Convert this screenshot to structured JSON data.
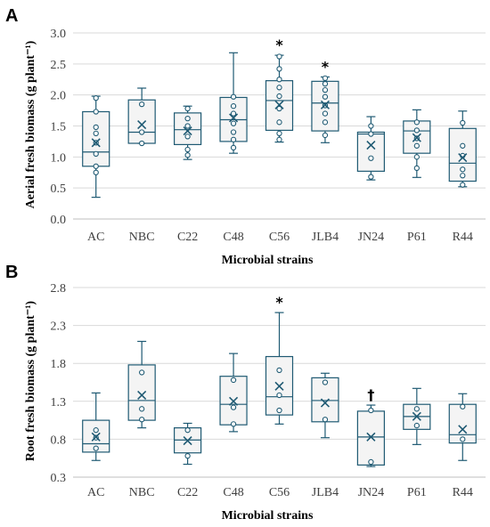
{
  "colors": {
    "box_stroke": "#1f5a73",
    "box_fill": "#f4f4f4",
    "grid": "#d9d9d9",
    "axis": "#bfbfbf"
  },
  "chart_data": [
    {
      "panel_label": "A",
      "type": "box",
      "ylabel": "Aerial fresh biomass (g plant⁻¹)",
      "xlabel": "Microbial strains",
      "ylim": [
        0.0,
        3.0
      ],
      "yticks": [
        "0.0",
        "0.5",
        "1.0",
        "1.5",
        "2.0",
        "2.5",
        "3.0"
      ],
      "ytick_values": [
        0.0,
        0.5,
        1.0,
        1.5,
        2.0,
        2.5,
        3.0
      ],
      "grid": true,
      "categories": [
        "AC",
        "NBC",
        "C22",
        "C48",
        "C56",
        "JLB4",
        "JN24",
        "P61",
        "R44"
      ],
      "boxes": [
        {
          "name": "AC",
          "min": 0.35,
          "q1": 0.85,
          "median": 1.08,
          "q3": 1.73,
          "max": 1.98,
          "mean": 1.23,
          "points": [
            0.75,
            0.85,
            1.05,
            1.23,
            1.38,
            1.48,
            1.73,
            1.95
          ],
          "annotation": ""
        },
        {
          "name": "NBC",
          "min": 1.22,
          "q1": 1.22,
          "median": 1.4,
          "q3": 1.92,
          "max": 2.11,
          "mean": 1.52,
          "points": [
            1.22,
            1.4,
            1.85
          ],
          "annotation": ""
        },
        {
          "name": "C22",
          "min": 0.96,
          "q1": 1.2,
          "median": 1.44,
          "q3": 1.71,
          "max": 1.82,
          "mean": 1.42,
          "points": [
            1.03,
            1.12,
            1.33,
            1.5,
            1.62,
            1.78
          ],
          "annotation": ""
        },
        {
          "name": "C48",
          "min": 1.06,
          "q1": 1.25,
          "median": 1.6,
          "q3": 1.96,
          "max": 2.68,
          "mean": 1.63,
          "points": [
            1.15,
            1.28,
            1.4,
            1.54,
            1.7,
            1.82,
            1.97
          ],
          "annotation": ""
        },
        {
          "name": "C56",
          "min": 1.24,
          "q1": 1.43,
          "median": 1.91,
          "q3": 2.23,
          "max": 2.64,
          "mean": 1.84,
          "points": [
            1.28,
            1.38,
            1.56,
            1.78,
            1.98,
            2.12,
            2.25,
            2.42,
            2.62
          ],
          "annotation": "*"
        },
        {
          "name": "JLB4",
          "min": 1.23,
          "q1": 1.42,
          "median": 1.87,
          "q3": 2.22,
          "max": 2.29,
          "mean": 1.84,
          "points": [
            1.35,
            1.56,
            1.7,
            1.83,
            1.97,
            2.08,
            2.18,
            2.27
          ],
          "annotation": "*"
        },
        {
          "name": "JN24",
          "min": 0.63,
          "q1": 0.77,
          "median": 1.37,
          "q3": 1.4,
          "max": 1.65,
          "mean": 1.19,
          "points": [
            0.68,
            0.98,
            1.37,
            1.5
          ],
          "annotation": ""
        },
        {
          "name": "P61",
          "min": 0.67,
          "q1": 1.06,
          "median": 1.42,
          "q3": 1.58,
          "max": 1.76,
          "mean": 1.31,
          "points": [
            0.82,
            1.0,
            1.18,
            1.3,
            1.43,
            1.56
          ],
          "annotation": ""
        },
        {
          "name": "R44",
          "min": 0.52,
          "q1": 0.61,
          "median": 0.9,
          "q3": 1.46,
          "max": 1.74,
          "mean": 0.99,
          "points": [
            0.55,
            0.7,
            0.8,
            1.02,
            1.18,
            1.55
          ],
          "annotation": ""
        }
      ]
    },
    {
      "panel_label": "B",
      "type": "box",
      "ylabel": "Root fresh biomass (g plant⁻¹)",
      "xlabel": "Microbial strains",
      "ylim": [
        0.3,
        2.8
      ],
      "yticks": [
        "0.3",
        "0.8",
        "1.3",
        "1.8",
        "2.3",
        "2.8"
      ],
      "ytick_values": [
        0.3,
        0.8,
        1.3,
        1.8,
        2.3,
        2.8
      ],
      "grid": true,
      "categories": [
        "AC",
        "NBC",
        "C22",
        "C48",
        "C56",
        "JLB4",
        "JN24",
        "P61",
        "R44"
      ],
      "boxes": [
        {
          "name": "AC",
          "min": 0.52,
          "q1": 0.63,
          "median": 0.74,
          "q3": 1.05,
          "max": 1.41,
          "mean": 0.83,
          "points": [
            0.68,
            0.82,
            0.92
          ],
          "annotation": ""
        },
        {
          "name": "NBC",
          "min": 0.95,
          "q1": 1.05,
          "median": 1.31,
          "q3": 1.78,
          "max": 2.09,
          "mean": 1.38,
          "points": [
            1.06,
            1.2,
            1.68
          ],
          "annotation": ""
        },
        {
          "name": "C22",
          "min": 0.47,
          "q1": 0.62,
          "median": 0.79,
          "q3": 0.95,
          "max": 1.01,
          "mean": 0.78,
          "points": [
            0.58,
            0.92
          ],
          "annotation": ""
        },
        {
          "name": "C48",
          "min": 0.9,
          "q1": 0.99,
          "median": 1.26,
          "q3": 1.63,
          "max": 1.93,
          "mean": 1.3,
          "points": [
            1.0,
            1.22,
            1.58
          ],
          "annotation": ""
        },
        {
          "name": "C56",
          "min": 1.0,
          "q1": 1.12,
          "median": 1.36,
          "q3": 1.89,
          "max": 2.47,
          "mean": 1.5,
          "points": [
            1.18,
            1.38,
            1.71
          ],
          "annotation": "*"
        },
        {
          "name": "JLB4",
          "min": 0.82,
          "q1": 1.03,
          "median": 1.31,
          "q3": 1.61,
          "max": 1.67,
          "mean": 1.28,
          "points": [
            1.06,
            1.55
          ],
          "annotation": ""
        },
        {
          "name": "JN24",
          "min": 0.44,
          "q1": 0.46,
          "median": 0.83,
          "q3": 1.17,
          "max": 1.25,
          "mean": 0.83,
          "points": [
            0.5,
            1.18
          ],
          "annotation": "†"
        },
        {
          "name": "P61",
          "min": 0.73,
          "q1": 0.93,
          "median": 1.1,
          "q3": 1.26,
          "max": 1.47,
          "mean": 1.1,
          "points": [
            0.98,
            1.2
          ],
          "annotation": ""
        },
        {
          "name": "R44",
          "min": 0.52,
          "q1": 0.75,
          "median": 0.86,
          "q3": 1.26,
          "max": 1.4,
          "mean": 0.93,
          "points": [
            0.8,
            1.23
          ],
          "annotation": ""
        }
      ]
    }
  ]
}
